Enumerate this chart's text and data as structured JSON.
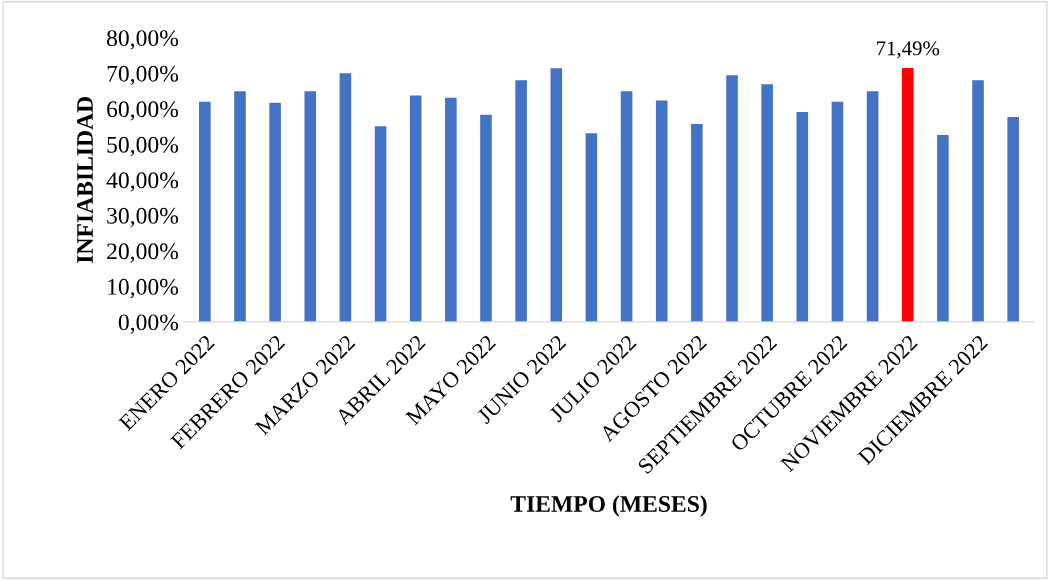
{
  "chart_data": {
    "type": "bar",
    "xlabel": "TIEMPO (MESES)",
    "ylabel": "INFIABILIDAD",
    "categories": [
      "ENERO 2022",
      null,
      "FEBRERO 2022",
      null,
      "MARZO 2022",
      null,
      "ABRIL 2022",
      null,
      "MAYO 2022",
      null,
      "JUNIO 2022",
      null,
      "JULIO 2022",
      null,
      "AGOSTO 2022",
      null,
      "SEPTIEMBRE 2022",
      null,
      "OCTUBRE 2022",
      null,
      "NOVIEMBRE 2022",
      null,
      "DICIEMBRE 2022",
      null
    ],
    "values": [
      62.0,
      64.9,
      61.7,
      64.9,
      70.0,
      55.1,
      63.7,
      63.1,
      58.3,
      68.0,
      71.4,
      53.1,
      64.9,
      62.3,
      55.7,
      69.4,
      66.9,
      59.1,
      62.0,
      64.9,
      71.49,
      52.6,
      68.0,
      57.7
    ],
    "colors": [
      "#4472c4",
      "#4472c4",
      "#4472c4",
      "#4472c4",
      "#4472c4",
      "#4472c4",
      "#4472c4",
      "#4472c4",
      "#4472c4",
      "#4472c4",
      "#4472c4",
      "#4472c4",
      "#4472c4",
      "#4472c4",
      "#4472c4",
      "#4472c4",
      "#4472c4",
      "#4472c4",
      "#4472c4",
      "#4472c4",
      "#ff0000",
      "#4472c4",
      "#4472c4",
      "#4472c4"
    ],
    "value_labels": [
      null,
      null,
      null,
      null,
      null,
      null,
      null,
      null,
      null,
      null,
      null,
      null,
      null,
      null,
      null,
      null,
      null,
      null,
      null,
      null,
      "71,49%",
      null,
      null,
      null
    ],
    "ylim": [
      0,
      80
    ],
    "yticks": [
      {
        "value": 0,
        "label": "0,00%"
      },
      {
        "value": 10,
        "label": "10,00%"
      },
      {
        "value": 20,
        "label": "20,00%"
      },
      {
        "value": 30,
        "label": "30,00%"
      },
      {
        "value": 40,
        "label": "40,00%"
      },
      {
        "value": 50,
        "label": "50,00%"
      },
      {
        "value": 60,
        "label": "60,00%"
      },
      {
        "value": 70,
        "label": "70,00%"
      },
      {
        "value": 80,
        "label": "80,00%"
      }
    ],
    "grid": false,
    "legend": false
  }
}
